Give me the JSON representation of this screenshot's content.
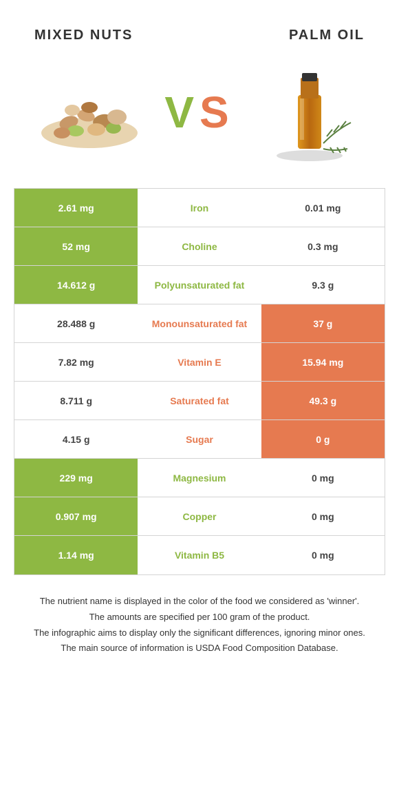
{
  "header": {
    "left_title": "MIXED NUTS",
    "right_title": "PALM OIL"
  },
  "vs_label": {
    "v": "V",
    "s": "S"
  },
  "colors": {
    "green": "#8eb843",
    "orange": "#e67a50",
    "border": "#d4d4d4",
    "text": "#333333"
  },
  "rows": [
    {
      "left": "2.61 mg",
      "mid": "Iron",
      "right": "0.01 mg",
      "winner": "left"
    },
    {
      "left": "52 mg",
      "mid": "Choline",
      "right": "0.3 mg",
      "winner": "left"
    },
    {
      "left": "14.612 g",
      "mid": "Polyunsaturated fat",
      "right": "9.3 g",
      "winner": "left"
    },
    {
      "left": "28.488 g",
      "mid": "Monounsaturated fat",
      "right": "37 g",
      "winner": "right"
    },
    {
      "left": "7.82 mg",
      "mid": "Vitamin E",
      "right": "15.94 mg",
      "winner": "right"
    },
    {
      "left": "8.711 g",
      "mid": "Saturated fat",
      "right": "49.3 g",
      "winner": "right"
    },
    {
      "left": "4.15 g",
      "mid": "Sugar",
      "right": "0 g",
      "winner": "right"
    },
    {
      "left": "229 mg",
      "mid": "Magnesium",
      "right": "0 mg",
      "winner": "left"
    },
    {
      "left": "0.907 mg",
      "mid": "Copper",
      "right": "0 mg",
      "winner": "left"
    },
    {
      "left": "1.14 mg",
      "mid": "Vitamin B5",
      "right": "0 mg",
      "winner": "left"
    }
  ],
  "footer": {
    "line1": "The nutrient name is displayed in the color of the food we considered as 'winner'.",
    "line2": "The amounts are specified per 100 gram of the product.",
    "line3": "The infographic aims to display only the significant differences, ignoring minor ones.",
    "line4": "The main source of information is USDA Food Composition Database."
  }
}
